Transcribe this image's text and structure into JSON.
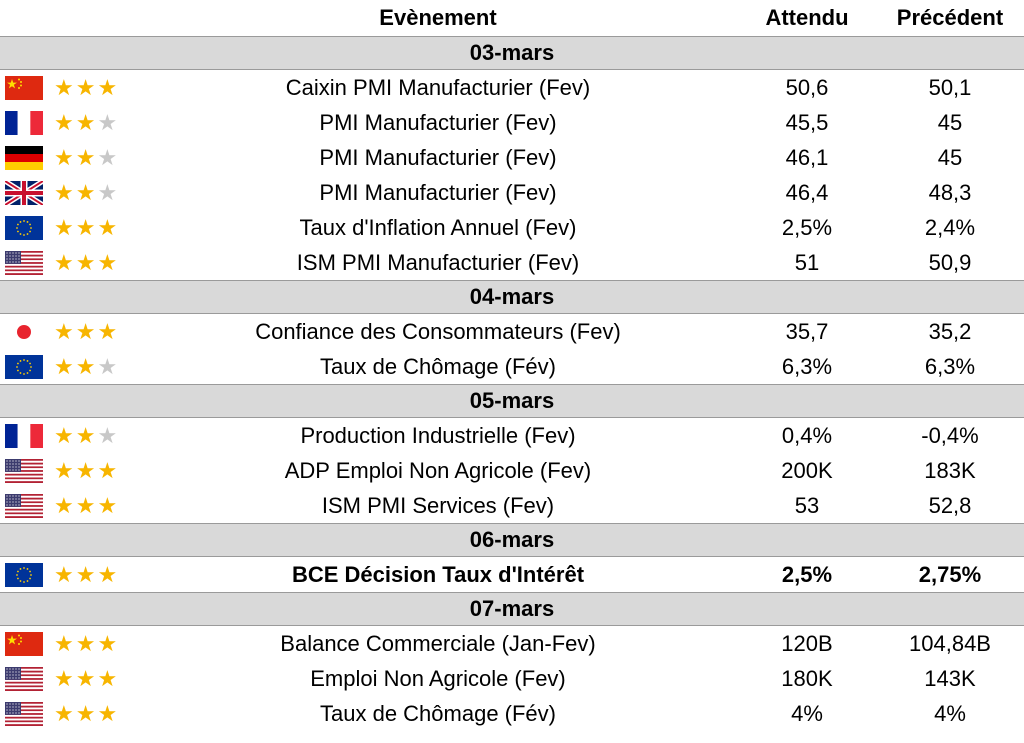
{
  "header": {
    "event": "Evènement",
    "expected": "Attendu",
    "previous": "Précédent"
  },
  "colors": {
    "star_on": "#f7b500",
    "star_off": "#c8c8c8",
    "section_bg": "#d9d9d9"
  },
  "sections": [
    {
      "date": "03-mars",
      "rows": [
        {
          "flag": "cn-flag-icon",
          "stars": 3,
          "event": "Caixin PMI Manufacturier (Fev)",
          "expected": "50,6",
          "previous": "50,1",
          "bold": false
        },
        {
          "flag": "fr-flag-icon",
          "stars": 2,
          "event": "PMI Manufacturier (Fev)",
          "expected": "45,5",
          "previous": "45",
          "bold": false
        },
        {
          "flag": "de-flag-icon",
          "stars": 2,
          "event": "PMI Manufacturier (Fev)",
          "expected": "46,1",
          "previous": "45",
          "bold": false
        },
        {
          "flag": "uk-flag-icon",
          "stars": 2,
          "event": "PMI Manufacturier (Fev)",
          "expected": "46,4",
          "previous": "48,3",
          "bold": false
        },
        {
          "flag": "eu-flag-icon",
          "stars": 3,
          "event": "Taux d'Inflation Annuel (Fev)",
          "expected": "2,5%",
          "previous": "2,4%",
          "bold": false
        },
        {
          "flag": "us-flag-icon",
          "stars": 3,
          "event": "ISM PMI Manufacturier (Fev)",
          "expected": "51",
          "previous": "50,9",
          "bold": false
        }
      ]
    },
    {
      "date": "04-mars",
      "rows": [
        {
          "flag": "jp-flag-icon",
          "stars": 3,
          "event": "Confiance des Consommateurs (Fev)",
          "expected": "35,7",
          "previous": "35,2",
          "bold": false
        },
        {
          "flag": "eu-flag-icon",
          "stars": 2,
          "event": "Taux de Chômage (Fév)",
          "expected": "6,3%",
          "previous": "6,3%",
          "bold": false
        }
      ]
    },
    {
      "date": "05-mars",
      "rows": [
        {
          "flag": "fr-flag-icon",
          "stars": 2,
          "event": "Production Industrielle (Fev)",
          "expected": "0,4%",
          "previous": "-0,4%",
          "bold": false
        },
        {
          "flag": "us-flag-icon",
          "stars": 3,
          "event": "ADP Emploi Non Agricole (Fev)",
          "expected": "200K",
          "previous": "183K",
          "bold": false
        },
        {
          "flag": "us-flag-icon",
          "stars": 3,
          "event": "ISM PMI Services (Fev)",
          "expected": "53",
          "previous": "52,8",
          "bold": false
        }
      ]
    },
    {
      "date": "06-mars",
      "rows": [
        {
          "flag": "eu-flag-icon",
          "stars": 3,
          "event": "BCE Décision Taux d'Intérêt",
          "expected": "2,5%",
          "previous": "2,75%",
          "bold": true
        }
      ]
    },
    {
      "date": "07-mars",
      "rows": [
        {
          "flag": "cn-flag-icon",
          "stars": 3,
          "event": "Balance Commerciale (Jan-Fev)",
          "expected": "120B",
          "previous": "104,84B",
          "bold": false
        },
        {
          "flag": "us-flag-icon",
          "stars": 3,
          "event": "Emploi Non Agricole (Fev)",
          "expected": "180K",
          "previous": "143K",
          "bold": false
        },
        {
          "flag": "us-flag-icon",
          "stars": 3,
          "event": "Taux de Chômage (Fév)",
          "expected": "4%",
          "previous": "4%",
          "bold": false
        }
      ]
    }
  ]
}
